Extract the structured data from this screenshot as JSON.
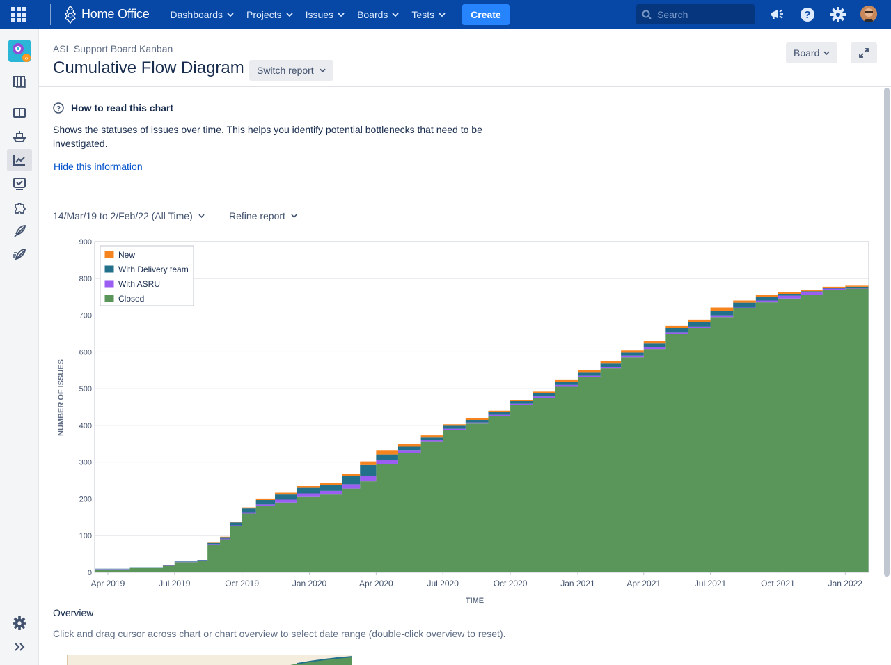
{
  "topnav": {
    "brand": "Home Office",
    "items": [
      {
        "label": "Dashboards"
      },
      {
        "label": "Projects"
      },
      {
        "label": "Issues"
      },
      {
        "label": "Boards"
      },
      {
        "label": "Tests"
      }
    ],
    "create_label": "Create",
    "search_placeholder": "Search",
    "icons": [
      "apps-grid-icon",
      "notifications-megaphone-icon",
      "help-icon",
      "settings-gear-icon",
      "user-avatar"
    ]
  },
  "sidebar": {
    "icons": [
      "project-avatar",
      "board-icon",
      "columns-icon",
      "ship-icon",
      "reports-chart-icon",
      "checklist-icon",
      "puzzle-icon",
      "feather-icon",
      "feather-speed-icon",
      "settings-gear-icon",
      "expand-chevrons-icon"
    ]
  },
  "header": {
    "breadcrumb": "ASL Support Board Kanban",
    "title": "Cumulative Flow Diagram",
    "switch_report": "Switch report",
    "board_label": "Board"
  },
  "info": {
    "title": "How to read this chart",
    "text": "Shows the statuses of issues over time. This helps you identify potential bottlenecks that need to be investigated.",
    "hide_link": "Hide this information"
  },
  "controls": {
    "date_range": "14/Mar/19 to 2/Feb/22 (All Time)",
    "refine": "Refine report"
  },
  "overview": {
    "title": "Overview",
    "text": "Click and drag cursor across chart or chart overview to select date range (double-click overview to reset)."
  },
  "colors": {
    "new": "#f5841f",
    "with_delivery": "#23708a",
    "with_asru": "#9a5ef2",
    "closed": "#5a965a"
  },
  "chart_data": {
    "type": "area",
    "stacked": true,
    "title": "",
    "xlabel": "TIME",
    "ylabel": "NUMBER OF ISSUES",
    "ylim": [
      0,
      900
    ],
    "yticks": [
      "0",
      "100",
      "200",
      "300",
      "400",
      "500",
      "600",
      "700",
      "800",
      "900"
    ],
    "xticks": [
      "Apr 2019",
      "Jul 2019",
      "Oct 2019",
      "Jan 2020",
      "Apr 2020",
      "Jul 2020",
      "Oct 2020",
      "Jan 2021",
      "Apr 2021",
      "Jul 2021",
      "Oct 2021",
      "Jan 2022"
    ],
    "xlim": [
      "2019-03-14",
      "2022-02-02"
    ],
    "legend_position": "top-left",
    "grid": true,
    "x": [
      "2019-03-14",
      "2019-05-01",
      "2019-06-15",
      "2019-07-01",
      "2019-08-01",
      "2019-08-15",
      "2019-09-01",
      "2019-09-15",
      "2019-10-01",
      "2019-10-20",
      "2019-11-15",
      "2019-12-15",
      "2020-01-15",
      "2020-02-15",
      "2020-03-10",
      "2020-04-01",
      "2020-05-01",
      "2020-06-01",
      "2020-07-01",
      "2020-08-01",
      "2020-09-01",
      "2020-10-01",
      "2020-11-01",
      "2020-12-01",
      "2021-01-01",
      "2021-02-01",
      "2021-03-01",
      "2021-04-01",
      "2021-05-01",
      "2021-06-01",
      "2021-07-01",
      "2021-08-01",
      "2021-09-01",
      "2021-10-01",
      "2021-11-01",
      "2021-12-01",
      "2022-01-01",
      "2022-02-02"
    ],
    "series": [
      {
        "name": "Closed",
        "values": [
          8,
          12,
          18,
          28,
          32,
          75,
          90,
          125,
          160,
          180,
          190,
          205,
          212,
          228,
          248,
          295,
          325,
          355,
          388,
          405,
          425,
          455,
          475,
          505,
          532,
          555,
          585,
          608,
          648,
          665,
          695,
          718,
          735,
          745,
          755,
          768,
          772,
          782
        ]
      },
      {
        "name": "With ASRU",
        "values": [
          1,
          1,
          1,
          1,
          1,
          2,
          2,
          3,
          4,
          5,
          8,
          10,
          10,
          12,
          14,
          12,
          8,
          5,
          3,
          3,
          4,
          4,
          4,
          5,
          3,
          4,
          5,
          5,
          5,
          4,
          3,
          3,
          5,
          8,
          7,
          4,
          3,
          5
        ]
      },
      {
        "name": "With Delivery team",
        "values": [
          1,
          1,
          1,
          1,
          1,
          3,
          4,
          8,
          10,
          12,
          14,
          15,
          16,
          22,
          30,
          14,
          9,
          7,
          8,
          7,
          7,
          7,
          8,
          9,
          10,
          9,
          8,
          10,
          12,
          12,
          13,
          13,
          10,
          5,
          3,
          2,
          2,
          2
        ]
      },
      {
        "name": "New",
        "values": [
          0,
          0,
          0,
          0,
          0,
          1,
          1,
          2,
          3,
          4,
          5,
          5,
          6,
          7,
          10,
          12,
          8,
          6,
          4,
          4,
          4,
          4,
          5,
          6,
          5,
          6,
          6,
          6,
          6,
          7,
          10,
          6,
          4,
          4,
          3,
          3,
          3,
          3
        ]
      }
    ]
  }
}
